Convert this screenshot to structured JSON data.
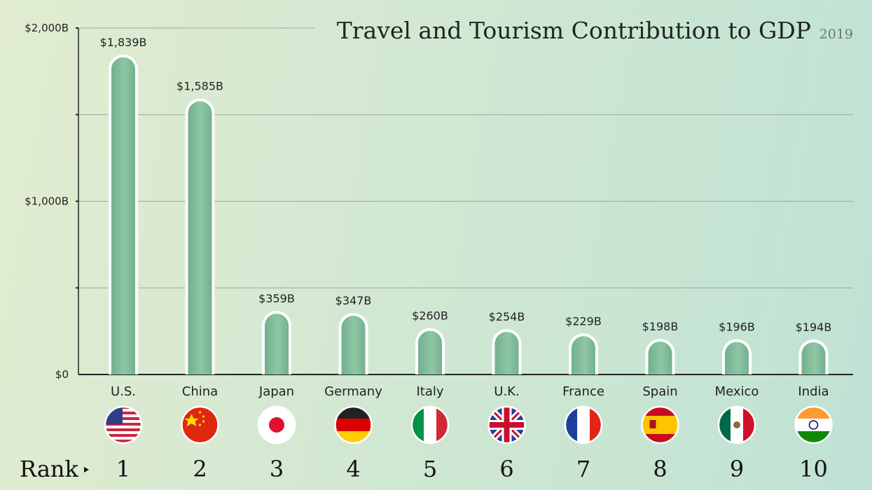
{
  "chart_data": {
    "type": "bar",
    "title": "Travel and Tourism Contribution to GDP",
    "subtitle": "2019",
    "categories": [
      "U.S.",
      "China",
      "Japan",
      "Germany",
      "Italy",
      "U.K.",
      "France",
      "Spain",
      "Mexico",
      "India"
    ],
    "values": [
      1839,
      1585,
      359,
      347,
      260,
      254,
      229,
      198,
      196,
      194
    ],
    "value_labels": [
      "$1,839B",
      "$1,585B",
      "$359B",
      "$347B",
      "$260B",
      "$254B",
      "$229B",
      "$198B",
      "$196B",
      "$194B"
    ],
    "ranks": [
      "1",
      "2",
      "3",
      "4",
      "5",
      "6",
      "7",
      "8",
      "9",
      "10"
    ],
    "rank_label": "Rank",
    "ylim": [
      0,
      2000
    ],
    "yticks": [
      0,
      1000,
      2000
    ],
    "ytick_labels": [
      "$0",
      "$1,000B",
      "$2,000B"
    ],
    "minor_yticks": [
      500,
      1500
    ],
    "grid": true,
    "unit": "billion USD",
    "flag_icons": [
      "us-flag-icon",
      "china-flag-icon",
      "japan-flag-icon",
      "germany-flag-icon",
      "italy-flag-icon",
      "uk-flag-icon",
      "france-flag-icon",
      "spain-flag-icon",
      "mexico-flag-icon",
      "india-flag-icon"
    ],
    "colors": {
      "bar": "#8ec6a4",
      "bar_dark": "#6fae8b",
      "bar_outline": "#ffffff",
      "grid": "#9aaa9a",
      "axis": "#222222"
    }
  }
}
